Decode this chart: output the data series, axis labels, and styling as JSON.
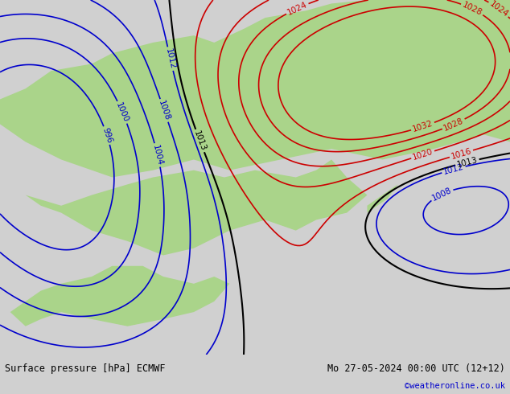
{
  "title_left": "Surface pressure [hPa] ECMWF",
  "title_right": "Mo 27-05-2024 00:00 UTC (12+12)",
  "credit": "©weatheronline.co.uk",
  "bg_color": "#d0d0d0",
  "land_color": "#aad48a",
  "sea_color": "#d8d8d8",
  "blue_contour_color": "#0000cc",
  "red_contour_color": "#cc0000",
  "black_contour_color": "#000000",
  "bottom_bar_color": "#ffffff",
  "bottom_bar_height": 0.1,
  "label_fontsize": 7.5,
  "title_fontsize": 8.5,
  "credit_fontsize": 7.5,
  "credit_color": "#0000cc"
}
